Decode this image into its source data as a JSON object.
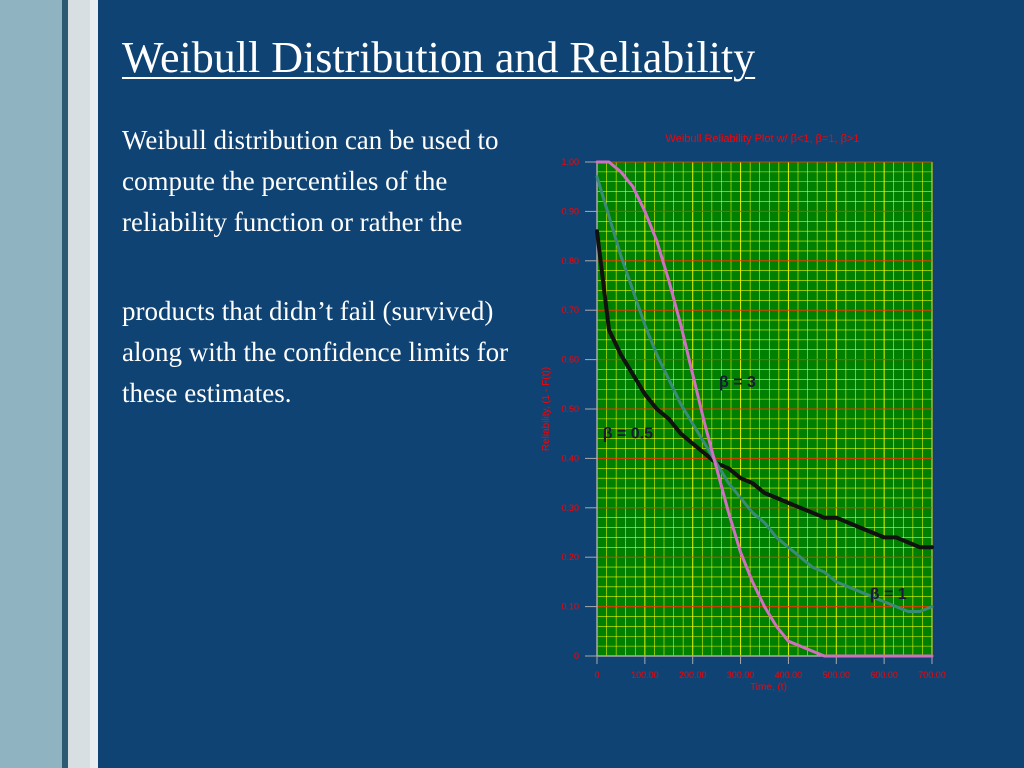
{
  "slide": {
    "title": "Weibull Distribution and Reliability",
    "paragraph1": "Weibull distribution can be used to compute the percentiles of the reliability function or rather the",
    "paragraph2": "products that didn’t fail (survived) along with the confidence limits for these estimates."
  },
  "colors": {
    "background": "#0f4373",
    "plot_background": "#008000",
    "grid": "#ffff00",
    "axis_text": "#ff0000",
    "curve_beta_0_5": "#111111",
    "curve_beta_1": "#3a8a78",
    "curve_beta_3": "#d070c0"
  },
  "chart_data": {
    "type": "line",
    "title": "Weibull Reliability Plot w/ β<1, β=1, β>1",
    "xlabel": "Time, (t)",
    "ylabel": "Reliability, (1 - F(t))",
    "xlim": [
      0,
      700
    ],
    "ylim": [
      0,
      1
    ],
    "xticks": [
      "0",
      "100.00",
      "200.00",
      "300.00",
      "400.00",
      "500.00",
      "600.00",
      "700.00"
    ],
    "yticks": [
      "0",
      "0.10",
      "0.20",
      "0.30",
      "0.40",
      "0.50",
      "0.60",
      "0.70",
      "0.80",
      "0.90",
      "1.00"
    ],
    "grid": true,
    "x": [
      0,
      25,
      50,
      75,
      100,
      125,
      150,
      175,
      200,
      225,
      250,
      275,
      300,
      325,
      350,
      375,
      400,
      425,
      450,
      475,
      500,
      525,
      550,
      575,
      600,
      625,
      650,
      675,
      700
    ],
    "series": [
      {
        "name": "β = 0.5",
        "values": [
          0.86,
          0.66,
          0.61,
          0.57,
          0.53,
          0.5,
          0.48,
          0.45,
          0.43,
          0.41,
          0.39,
          0.38,
          0.36,
          0.35,
          0.33,
          0.32,
          0.31,
          0.3,
          0.29,
          0.28,
          0.28,
          0.27,
          0.26,
          0.25,
          0.24,
          0.24,
          0.23,
          0.22,
          0.22
        ]
      },
      {
        "name": "β = 1",
        "values": [
          0.97,
          0.89,
          0.81,
          0.74,
          0.67,
          0.61,
          0.56,
          0.51,
          0.47,
          0.43,
          0.39,
          0.35,
          0.32,
          0.29,
          0.27,
          0.24,
          0.22,
          0.2,
          0.18,
          0.17,
          0.15,
          0.14,
          0.13,
          0.12,
          0.11,
          0.1,
          0.09,
          0.09,
          0.1
        ]
      },
      {
        "name": "β = 3",
        "values": [
          1.0,
          1.0,
          0.98,
          0.95,
          0.9,
          0.84,
          0.76,
          0.67,
          0.57,
          0.47,
          0.38,
          0.29,
          0.21,
          0.15,
          0.1,
          0.06,
          0.03,
          0.02,
          0.01,
          0.0,
          0.0,
          0.0,
          0.0,
          0.0,
          0.0,
          0.0,
          0.0,
          0.0,
          0.0
        ]
      }
    ]
  }
}
